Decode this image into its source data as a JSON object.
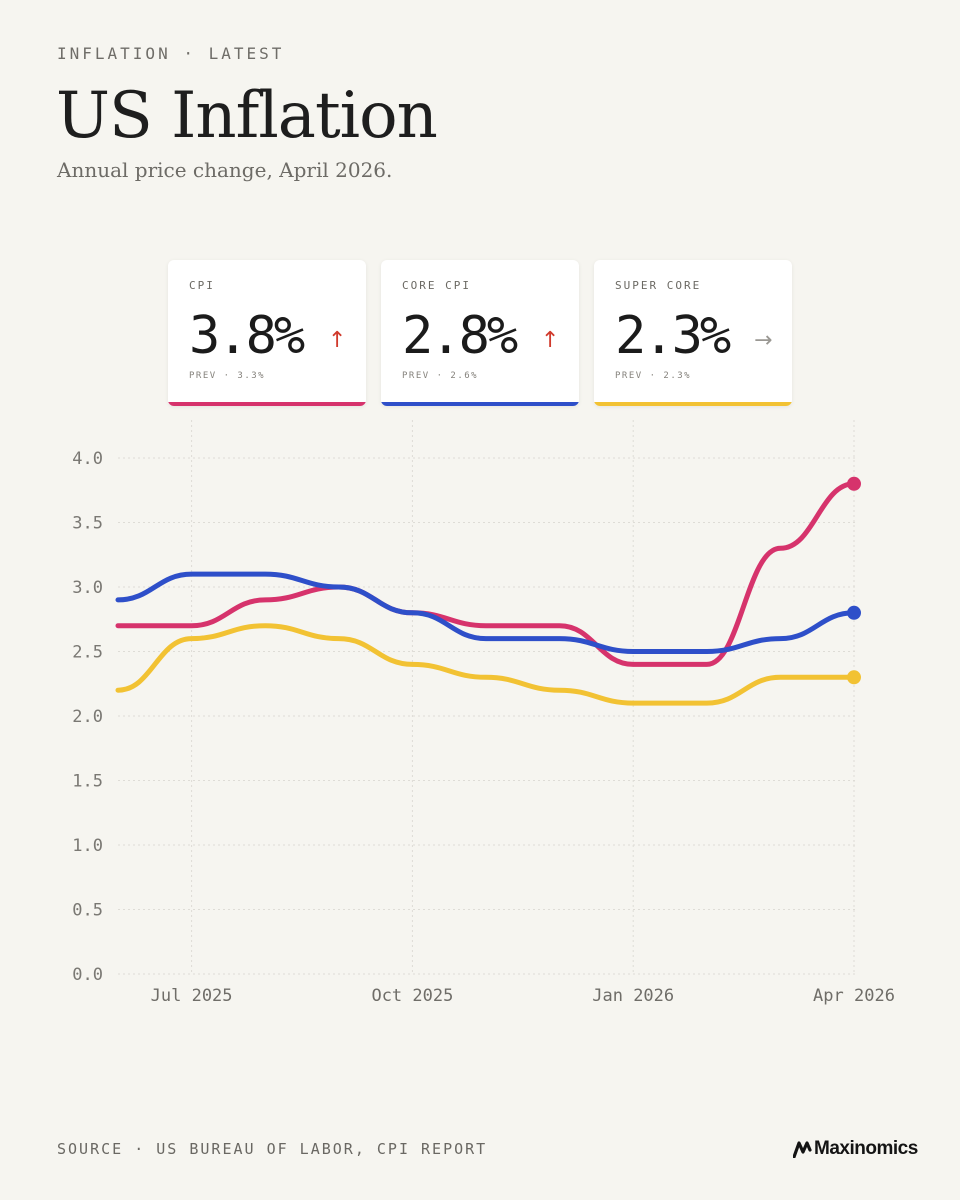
{
  "header": {
    "kicker": "INFLATION · LATEST",
    "title": "US Inflation",
    "subtitle": "Annual price change, April 2026."
  },
  "cards": [
    {
      "label": "CPI",
      "value": "3.8%",
      "arrow": "↑",
      "arrow_color": "#d03a2c",
      "prev": "PREV · 3.3%",
      "color": "#d6336c"
    },
    {
      "label": "CORE CPI",
      "value": "2.8%",
      "arrow": "↑",
      "arrow_color": "#d03a2c",
      "prev": "PREV · 2.6%",
      "color": "#2e4fc9"
    },
    {
      "label": "SUPER CORE",
      "value": "2.3%",
      "arrow": "→",
      "arrow_color": "#9a9893",
      "prev": "PREV · 2.3%",
      "color": "#f2c233"
    }
  ],
  "chart_data": {
    "type": "line",
    "x": [
      "2025-06",
      "2025-07",
      "2025-08",
      "2025-09",
      "2025-10",
      "2025-11",
      "2025-12",
      "2026-01",
      "2026-02",
      "2026-03",
      "2026-04"
    ],
    "x_ticks": [
      {
        "at": "2025-07",
        "label": "Jul 2025"
      },
      {
        "at": "2025-10",
        "label": "Oct 2025"
      },
      {
        "at": "2026-01",
        "label": "Jan 2026"
      },
      {
        "at": "2026-04",
        "label": "Apr 2026"
      }
    ],
    "ylim": [
      0,
      4
    ],
    "y_ticks": [
      "0.0",
      "0.5",
      "1.0",
      "1.5",
      "2.0",
      "2.5",
      "3.0",
      "3.5",
      "4.0"
    ],
    "grid": true,
    "series": [
      {
        "name": "CPI",
        "color": "#d6336c",
        "values": [
          2.7,
          2.7,
          2.9,
          3.0,
          2.8,
          2.7,
          2.7,
          2.4,
          2.4,
          3.3,
          3.8
        ]
      },
      {
        "name": "CORE CPI",
        "color": "#2e4fc9",
        "values": [
          2.9,
          3.1,
          3.1,
          3.0,
          2.8,
          2.6,
          2.6,
          2.5,
          2.5,
          2.6,
          2.8
        ]
      },
      {
        "name": "SUPER CORE",
        "color": "#f2c233",
        "values": [
          2.2,
          2.6,
          2.7,
          2.6,
          2.4,
          2.3,
          2.2,
          2.1,
          2.1,
          2.3,
          2.3
        ]
      }
    ]
  },
  "footer": {
    "source": "SOURCE · US BUREAU OF LABOR, CPI REPORT",
    "brand": "Maxinomics"
  }
}
